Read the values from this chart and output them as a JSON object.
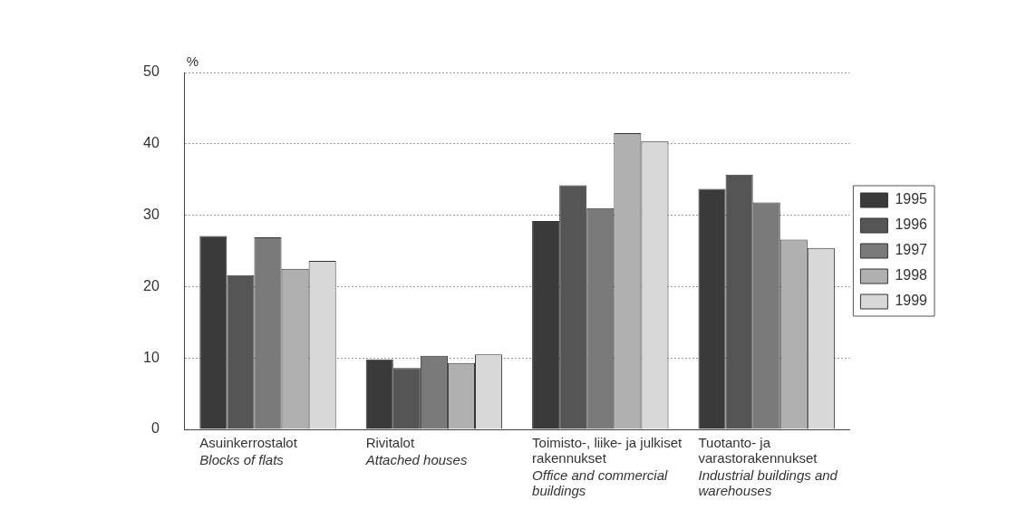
{
  "chart_data": {
    "type": "bar",
    "ylabel": "%",
    "categories": [
      "Asuinkerrostalot\nBlocks of flats",
      "Rivitalot\nAttached houses",
      "Toimisto-, liike- ja julkiset rakennukset\nOffice and commercial buildings",
      "Tuotanto- ja varastorakennukset\nIndustrial buildings and warehouses"
    ],
    "series": [
      {
        "name": "1995",
        "color": "#3a3a3a",
        "values": [
          27.1,
          9.8,
          29.2,
          33.7
        ]
      },
      {
        "name": "1996",
        "color": "#555555",
        "values": [
          21.6,
          8.6,
          34.2,
          35.7
        ]
      },
      {
        "name": "1997",
        "color": "#7a7a7a",
        "values": [
          26.9,
          10.3,
          31.0,
          31.8
        ]
      },
      {
        "name": "1998",
        "color": "#b0b0b0",
        "values": [
          22.5,
          9.3,
          41.5,
          26.6
        ]
      },
      {
        "name": "1999",
        "color": "#d8d8d8",
        "values": [
          23.6,
          10.5,
          40.4,
          25.4
        ]
      }
    ],
    "ylim": [
      0,
      50
    ],
    "yticks": [
      0,
      10,
      20,
      30,
      40,
      50
    ],
    "grid": "y",
    "legend": "right"
  }
}
